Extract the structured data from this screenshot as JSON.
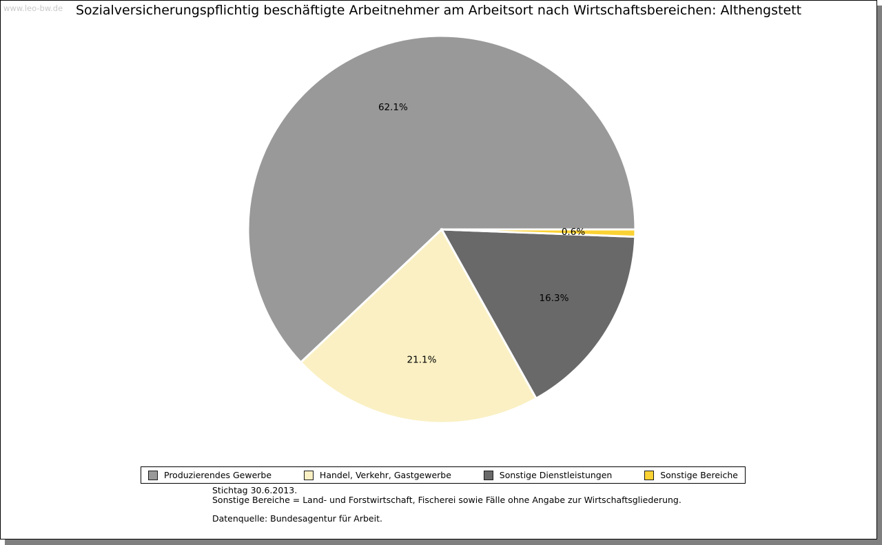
{
  "watermark": "www.leo-bw.de",
  "title": "Sozialversicherungspflichtig beschäftigte Arbeitnehmer am Arbeitsort nach Wirtschaftsbereichen: Althengstett",
  "chart_data": {
    "type": "pie",
    "title": "Sozialversicherungspflichtig beschäftigte Arbeitnehmer am Arbeitsort nach Wirtschaftsbereichen: Althengstett",
    "unit": "percent",
    "start_angle_deg": 0,
    "direction": "counterclockwise",
    "legend_position": "bottom",
    "slices": [
      {
        "name": "Produzierendes Gewerbe",
        "value": 62.1,
        "label": "62.1%",
        "color": "#999999"
      },
      {
        "name": "Handel, Verkehr, Gastgewerbe",
        "value": 21.1,
        "label": "21.1%",
        "color": "#FAF0C3"
      },
      {
        "name": "Sonstige Dienstleistungen",
        "value": 16.3,
        "label": "16.3%",
        "color": "#696969"
      },
      {
        "name": "Sonstige Bereiche",
        "value": 0.6,
        "label": "0.6%",
        "color": "#FBD233"
      }
    ]
  },
  "footer": {
    "line1": "Stichtag 30.6.2013.",
    "line2": "Sonstige Bereiche = Land- und Forstwirtschaft, Fischerei sowie Fälle ohne Angabe zur Wirtschaftsgliederung.",
    "line3": "Datenquelle: Bundesagentur für Arbeit."
  }
}
